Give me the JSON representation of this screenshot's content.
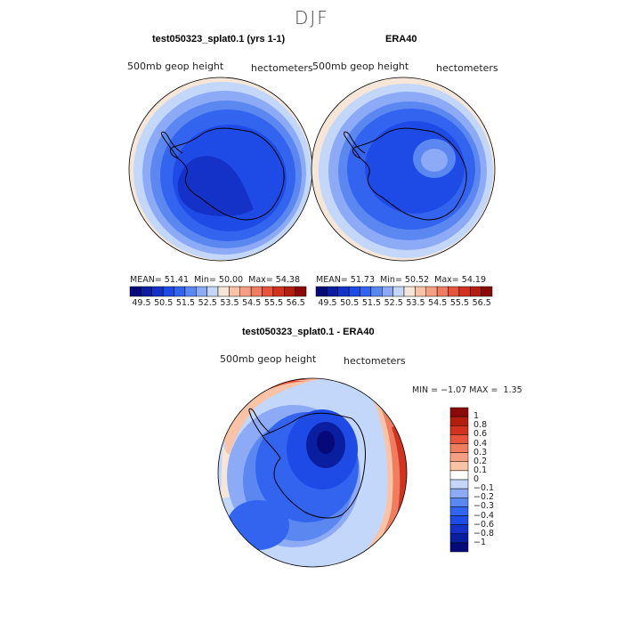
{
  "figure": {
    "season": "DJF",
    "panels": [
      {
        "title": "test050323_splat0.1 (yrs 1-1)",
        "left_label": "500mb  geop  height",
        "right_label": "hectometers",
        "stats": {
          "mean_label": "MEAN=",
          "mean": "51.41",
          "min_label": "Min=",
          "min": "50.00",
          "max_label": "Max=",
          "max": "54.38"
        }
      },
      {
        "title": "ERA40",
        "left_label": "500mb  geop  height",
        "right_label": "hectometers",
        "stats": {
          "mean_label": "MEAN=",
          "mean": "51.73",
          "min_label": "Min=",
          "min": "50.52",
          "max_label": "Max=",
          "max": "54.19"
        }
      },
      {
        "title": "test050323_splat0.1 - ERA40",
        "left_label": "500mb  geop  height",
        "right_label": "hectometers",
        "stats": {
          "min_label": "MIN =",
          "min": "−1.07",
          "max_label": "MAX =",
          "max": "1.35"
        }
      }
    ]
  },
  "chart_data": [
    {
      "type": "heatmap",
      "projection": "south-polar-stereographic",
      "title": "test050323_splat0.1 (yrs 1-1)",
      "variable": "500mb geop height",
      "units": "hectometers",
      "mean": 51.41,
      "min": 50.0,
      "max": 54.38,
      "colorbar_levels": [
        49.5,
        50,
        50.5,
        51,
        51.5,
        52,
        52.5,
        53,
        53.5,
        54,
        54.5,
        55,
        55.5,
        56,
        56.5
      ],
      "colorbar_tick_labels": [
        "49.5",
        "50.5",
        "51.5",
        "52.5",
        "53.5",
        "54.5",
        "55.5",
        "56.5"
      ]
    },
    {
      "type": "heatmap",
      "projection": "south-polar-stereographic",
      "title": "ERA40",
      "variable": "500mb geop height",
      "units": "hectometers",
      "mean": 51.73,
      "min": 50.52,
      "max": 54.19,
      "colorbar_levels": [
        49.5,
        50,
        50.5,
        51,
        51.5,
        52,
        52.5,
        53,
        53.5,
        54,
        54.5,
        55,
        55.5,
        56,
        56.5
      ],
      "colorbar_tick_labels": [
        "49.5",
        "50.5",
        "51.5",
        "52.5",
        "53.5",
        "54.5",
        "55.5",
        "56.5"
      ]
    },
    {
      "type": "heatmap",
      "projection": "south-polar-stereographic",
      "title": "test050323_splat0.1 - ERA40",
      "variable": "500mb geop height",
      "units": "hectometers",
      "min": -1.07,
      "max": 1.35,
      "colorbar_levels": [
        1,
        0.8,
        0.6,
        0.4,
        0.3,
        0.2,
        0.1,
        0,
        -0.1,
        -0.2,
        -0.3,
        -0.4,
        -0.6,
        -0.8,
        -1
      ],
      "colorbar_tick_labels": [
        "1",
        "0.8",
        "0.6",
        "0.4",
        "0.3",
        "0.2",
        "0.1",
        "0",
        "−0.1",
        "−0.2",
        "−0.3",
        "−0.4",
        "−0.6",
        "−0.8",
        "−1"
      ]
    }
  ],
  "colors": {
    "scale16": [
      "#050a78",
      "#0a1ea0",
      "#1432c8",
      "#1e4be6",
      "#3264f0",
      "#5a87f0",
      "#8caaf5",
      "#c3d7fa",
      "#f5e6d7",
      "#fac3a5",
      "#f5a082",
      "#f07d5f",
      "#e6553c",
      "#d2321e",
      "#b41e0f",
      "#8c0a05"
    ],
    "diff_bar": [
      "#8c0a05",
      "#b41e0f",
      "#d2321e",
      "#e6553c",
      "#f07d5f",
      "#f5a082",
      "#fac3a5",
      "#ffffff",
      "#c3d7fa",
      "#8caaf5",
      "#5a87f0",
      "#3264f0",
      "#1e4be6",
      "#1432c8",
      "#0a1ea0",
      "#050a78"
    ]
  }
}
